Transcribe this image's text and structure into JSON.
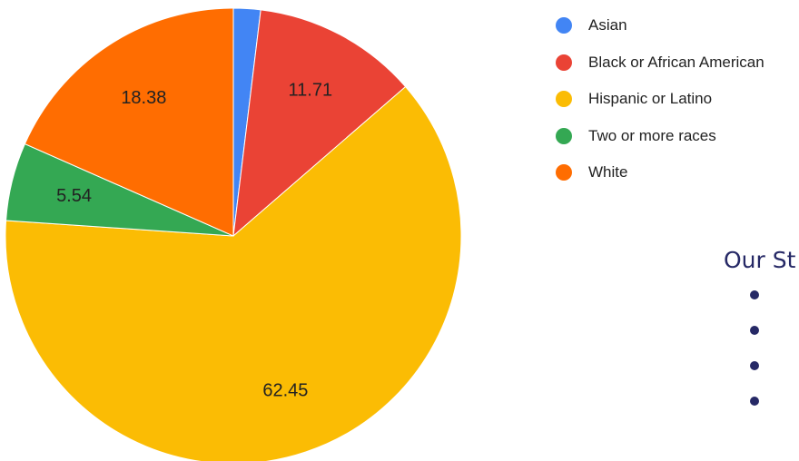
{
  "chart_data": {
    "type": "pie",
    "title": "",
    "slices": [
      {
        "label": "Asian",
        "value": 1.92,
        "color": "#4285F4",
        "show_label": false
      },
      {
        "label": "Black or African American",
        "value": 11.71,
        "color": "#EA4335",
        "show_label": true
      },
      {
        "label": "Hispanic or Latino",
        "value": 62.45,
        "color": "#FBBC04",
        "show_label": true
      },
      {
        "label": "Two or more races",
        "value": 5.54,
        "color": "#34A853",
        "show_label": true
      },
      {
        "label": "White",
        "value": 18.38,
        "color": "#FF6D01",
        "show_label": true
      }
    ],
    "legend_position": "right",
    "start_angle": "12 o'clock, clockwise"
  },
  "side_panel": {
    "title": "Our St",
    "bullet_count": 4,
    "bullet_color": "#262966"
  }
}
